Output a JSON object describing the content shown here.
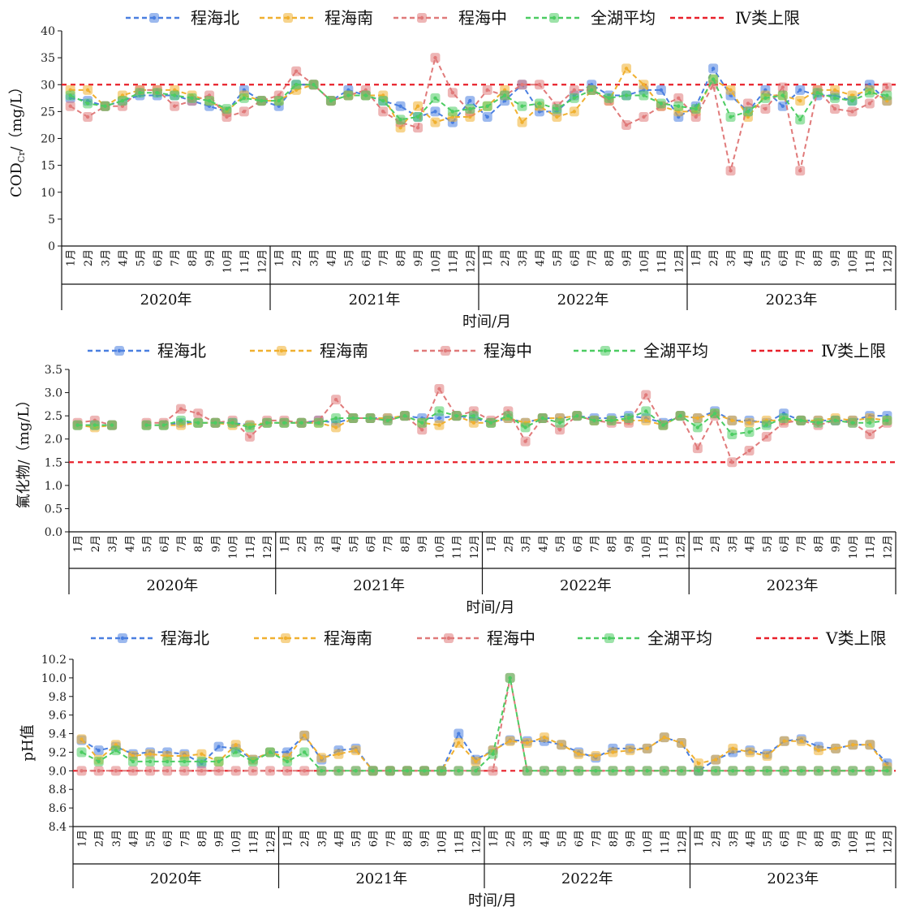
{
  "months": [
    "1月",
    "2月",
    "3月",
    "4月",
    "5月",
    "6月",
    "7月",
    "8月",
    "9月",
    "10月",
    "11月",
    "12月"
  ],
  "years": [
    "2020年",
    "2021年",
    "2022年",
    "2023年"
  ],
  "xlabel": "时间/月",
  "colors": {
    "north": "#4a7fe0",
    "south": "#f0b030",
    "middle": "#e07a7a",
    "lake": "#4ccc62",
    "limit": "#e8202a"
  },
  "chart_data": [
    {
      "type": "line",
      "ylabel": "COD/（mg/L）",
      "ylabel_parts": {
        "main": "COD",
        "sub": "Cr",
        "rest": "/（mg/L）"
      },
      "yticks": [
        "0",
        "5",
        "10",
        "15",
        "20",
        "25",
        "30",
        "35",
        "40"
      ],
      "ylim": [
        0,
        40
      ],
      "legend": [
        "程海北",
        "程海南",
        "程海中",
        "全湖平均",
        "Ⅳ类上限"
      ],
      "limit": 30,
      "series": [
        {
          "name": "程海北",
          "values": [
            27.5,
            27,
            26,
            27,
            28,
            28,
            28,
            27,
            26,
            25,
            29,
            27,
            26,
            30,
            30,
            27,
            29,
            28,
            27,
            26,
            24,
            25,
            23,
            27,
            24,
            27,
            30,
            25,
            25,
            28,
            30,
            28,
            28,
            29,
            29,
            24,
            26,
            33,
            28,
            25,
            29,
            26,
            29,
            28,
            28,
            27,
            30,
            27
          ]
        },
        {
          "name": "程海南",
          "values": [
            29,
            29,
            26,
            28,
            29,
            29,
            29,
            28,
            27,
            25,
            28,
            27,
            27,
            29,
            30,
            27,
            28,
            28,
            28,
            22,
            26,
            23,
            24,
            24,
            26,
            29,
            23,
            26,
            24,
            25,
            29,
            27,
            33,
            30,
            26,
            25,
            25,
            31,
            29,
            24,
            28,
            28,
            27,
            29,
            29,
            28,
            29,
            27
          ]
        },
        {
          "name": "程海中",
          "values": [
            26,
            24,
            26,
            26,
            29,
            29,
            26,
            27,
            28,
            24,
            25,
            27,
            28,
            32.5,
            30,
            27,
            28,
            29,
            25,
            23,
            22,
            35,
            28.5,
            25,
            29,
            28,
            30,
            30,
            26,
            29,
            29,
            27,
            22.5,
            24,
            26,
            27.5,
            24,
            30,
            14,
            26.5,
            25.5,
            29.5,
            14,
            29,
            25.5,
            25,
            26.5,
            29.5
          ]
        },
        {
          "name": "全湖平均",
          "values": [
            28,
            26.5,
            26,
            27,
            28.5,
            28.5,
            28,
            27.5,
            27,
            25.5,
            27.5,
            27,
            27,
            30,
            30,
            27,
            28,
            28,
            27,
            23.5,
            24,
            27.5,
            25,
            25.5,
            26,
            28,
            26,
            26.5,
            25.5,
            27.5,
            29,
            27.5,
            28,
            28,
            26.5,
            26,
            25.5,
            31,
            24,
            25,
            27.5,
            28,
            23.5,
            28.5,
            27.5,
            27,
            28.5,
            28
          ]
        }
      ]
    },
    {
      "type": "line",
      "ylabel": "氟化物/（mg/L）",
      "yticks": [
        "0.0",
        "0.5",
        "1.0",
        "1.5",
        "2.0",
        "2.5",
        "3.0",
        "3.5"
      ],
      "ylim": [
        0,
        3.5
      ],
      "legend": [
        "程海北",
        "程海南",
        "程海中",
        "全湖平均",
        "Ⅳ类上限"
      ],
      "limit": 1.5,
      "series": [
        {
          "name": "程海北",
          "values": [
            2.3,
            2.3,
            2.3,
            null,
            2.3,
            2.3,
            2.35,
            2.35,
            2.35,
            2.35,
            2.3,
            2.35,
            2.35,
            2.35,
            2.4,
            2.35,
            2.45,
            2.45,
            2.45,
            2.5,
            2.45,
            2.45,
            2.5,
            2.45,
            2.35,
            2.45,
            2.35,
            2.45,
            2.45,
            2.5,
            2.45,
            2.45,
            2.5,
            2.45,
            2.35,
            2.5,
            2.45,
            2.6,
            2.4,
            2.4,
            2.35,
            2.55,
            2.4,
            2.4,
            2.4,
            2.4,
            2.5,
            2.5
          ]
        },
        {
          "name": "程海南",
          "values": [
            2.3,
            2.25,
            2.3,
            null,
            2.3,
            2.3,
            2.3,
            2.35,
            2.35,
            2.3,
            2.3,
            2.35,
            2.35,
            2.35,
            2.35,
            2.25,
            2.45,
            2.45,
            2.45,
            2.5,
            2.35,
            2.3,
            2.5,
            2.35,
            2.35,
            2.45,
            2.35,
            2.45,
            2.45,
            2.5,
            2.4,
            2.4,
            2.4,
            2.4,
            2.3,
            2.5,
            2.45,
            2.55,
            2.4,
            2.35,
            2.4,
            2.4,
            2.4,
            2.4,
            2.45,
            2.4,
            2.45,
            2.4
          ]
        },
        {
          "name": "程海中",
          "values": [
            2.35,
            2.4,
            2.3,
            null,
            2.35,
            2.35,
            2.65,
            2.55,
            2.35,
            2.4,
            2.05,
            2.4,
            2.4,
            2.35,
            2.4,
            2.85,
            2.45,
            2.45,
            2.4,
            2.5,
            2.2,
            3.08,
            2.5,
            2.6,
            2.4,
            2.6,
            1.95,
            2.45,
            2.2,
            2.5,
            2.4,
            2.35,
            2.35,
            2.95,
            2.3,
            2.5,
            1.8,
            2.5,
            1.5,
            1.75,
            2.05,
            2.35,
            2.4,
            2.3,
            2.4,
            2.35,
            2.1,
            2.35
          ]
        },
        {
          "name": "全湖平均",
          "values": [
            2.3,
            2.3,
            2.3,
            null,
            2.3,
            2.3,
            2.4,
            2.35,
            2.35,
            2.35,
            2.25,
            2.35,
            2.35,
            2.35,
            2.35,
            2.45,
            2.45,
            2.45,
            2.4,
            2.5,
            2.35,
            2.6,
            2.5,
            2.5,
            2.35,
            2.5,
            2.25,
            2.45,
            2.35,
            2.5,
            2.4,
            2.4,
            2.45,
            2.6,
            2.3,
            2.5,
            2.25,
            2.55,
            2.1,
            2.15,
            2.3,
            2.45,
            2.4,
            2.35,
            2.4,
            2.35,
            2.35,
            2.4
          ]
        }
      ]
    },
    {
      "type": "line",
      "ylabel": "pH值",
      "yticks": [
        "8.4",
        "8.6",
        "8.8",
        "9.0",
        "9.2",
        "9.4",
        "9.6",
        "9.8",
        "10.0",
        "10.2"
      ],
      "ylim": [
        8.4,
        10.2
      ],
      "legend": [
        "程海北",
        "程海南",
        "程海中",
        "全湖平均",
        "Ⅴ类上限"
      ],
      "limit": 9.0,
      "series": [
        {
          "name": "程海北",
          "values": [
            9.33,
            9.22,
            9.26,
            9.18,
            9.2,
            9.2,
            9.18,
            9.08,
            9.26,
            9.24,
            9.12,
            9.2,
            9.2,
            9.38,
            9.12,
            9.22,
            9.24,
            9.0,
            9.0,
            9.0,
            9.0,
            9.0,
            9.4,
            9.12,
            9.22,
            9.33,
            9.32,
            9.32,
            9.28,
            9.2,
            9.14,
            9.24,
            9.24,
            9.24,
            9.36,
            9.3,
            9.0,
            9.12,
            9.2,
            9.22,
            9.18,
            9.32,
            9.34,
            9.26,
            9.24,
            9.28,
            9.28,
            9.08
          ]
        },
        {
          "name": "程海南",
          "values": [
            9.34,
            9.12,
            9.28,
            9.16,
            9.18,
            9.16,
            9.16,
            9.18,
            9.1,
            9.28,
            9.12,
            9.2,
            9.14,
            9.38,
            9.14,
            9.18,
            9.22,
            9.0,
            9.0,
            9.0,
            9.0,
            9.0,
            9.3,
            9.1,
            9.22,
            9.32,
            9.3,
            9.36,
            9.28,
            9.18,
            9.16,
            9.2,
            9.22,
            9.24,
            9.36,
            9.3,
            9.08,
            9.12,
            9.24,
            9.2,
            9.16,
            9.32,
            9.32,
            9.22,
            9.24,
            9.28,
            9.28,
            9.04
          ]
        },
        {
          "name": "程海中",
          "values": [
            9.0,
            9.0,
            9.0,
            9.0,
            9.0,
            9.0,
            9.0,
            9.0,
            9.0,
            9.0,
            9.0,
            9.0,
            9.0,
            9.0,
            9.0,
            9.0,
            9.0,
            9.0,
            9.0,
            9.0,
            9.0,
            9.0,
            9.0,
            9.0,
            9.0,
            10.0,
            9.0,
            9.0,
            9.0,
            9.0,
            9.0,
            9.0,
            9.0,
            9.0,
            9.0,
            9.0,
            9.0,
            9.0,
            9.0,
            9.0,
            9.0,
            9.0,
            9.0,
            9.0,
            9.0,
            9.0,
            9.0,
            9.0
          ]
        },
        {
          "name": "全湖平均",
          "values": [
            9.2,
            9.1,
            9.22,
            9.1,
            9.1,
            9.1,
            9.1,
            9.1,
            9.1,
            9.2,
            9.1,
            9.2,
            9.1,
            9.2,
            9.0,
            9.0,
            9.0,
            9.0,
            9.0,
            9.0,
            9.0,
            9.0,
            9.0,
            9.0,
            9.18,
            10.0,
            9.0,
            9.0,
            9.0,
            9.0,
            9.0,
            9.0,
            9.0,
            9.0,
            9.0,
            9.0,
            9.0,
            9.0,
            9.0,
            9.0,
            9.0,
            9.0,
            9.0,
            9.0,
            9.0,
            9.0,
            9.0,
            9.0
          ]
        }
      ]
    }
  ]
}
